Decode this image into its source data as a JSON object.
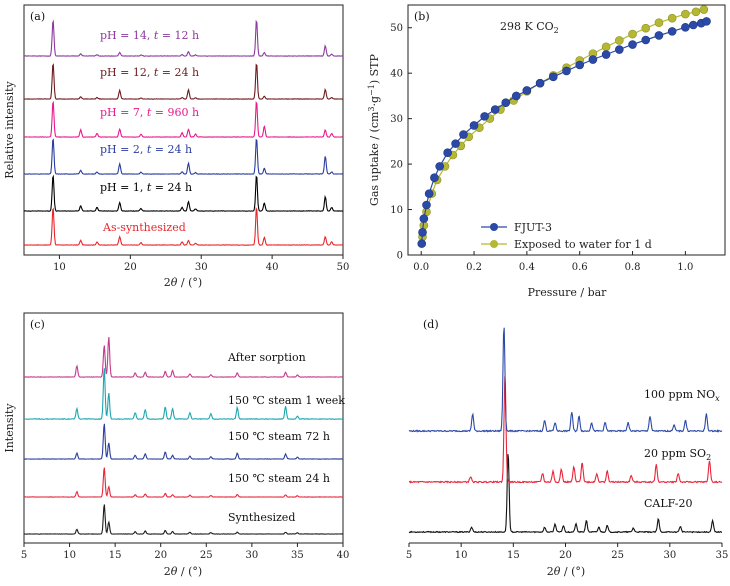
{
  "chart_data": [
    {
      "panel": "(a)",
      "type": "line",
      "xlabel": "2θ / (°)",
      "ylabel": "Relative intensity",
      "xlim": [
        5,
        50
      ],
      "xticks": [
        10,
        20,
        30,
        40,
        50
      ],
      "series": [
        {
          "name": "As-synthesized",
          "color": "#e8262a",
          "peaks": [
            [
              9.1,
              1.0
            ],
            [
              13.0,
              0.12
            ],
            [
              15.3,
              0.08
            ],
            [
              18.5,
              0.22
            ],
            [
              21.5,
              0.06
            ],
            [
              27.3,
              0.08
            ],
            [
              28.2,
              0.12
            ],
            [
              29.2,
              0.05
            ],
            [
              37.8,
              1.0
            ],
            [
              38.9,
              0.2
            ],
            [
              47.5,
              0.22
            ],
            [
              48.4,
              0.08
            ]
          ]
        },
        {
          "name": "pH = 1, t = 24 h",
          "color": "#000000",
          "peaks": [
            [
              9.1,
              1.0
            ],
            [
              13.0,
              0.14
            ],
            [
              15.3,
              0.1
            ],
            [
              18.5,
              0.24
            ],
            [
              21.5,
              0.07
            ],
            [
              27.3,
              0.1
            ],
            [
              28.2,
              0.26
            ],
            [
              29.2,
              0.06
            ],
            [
              37.8,
              1.0
            ],
            [
              38.9,
              0.22
            ],
            [
              47.5,
              0.4
            ],
            [
              48.4,
              0.1
            ]
          ]
        },
        {
          "name": "pH = 2, t = 24 h",
          "color": "#2b3d9e",
          "peaks": [
            [
              9.1,
              1.0
            ],
            [
              13.0,
              0.1
            ],
            [
              15.3,
              0.06
            ],
            [
              18.5,
              0.28
            ],
            [
              21.5,
              0.05
            ],
            [
              27.3,
              0.06
            ],
            [
              28.2,
              0.3
            ],
            [
              29.2,
              0.04
            ],
            [
              37.8,
              1.0
            ],
            [
              38.9,
              0.16
            ],
            [
              47.5,
              0.5
            ],
            [
              48.4,
              0.06
            ]
          ]
        },
        {
          "name": "pH = 7, t = 960 h",
          "color": "#e8198c",
          "peaks": [
            [
              9.1,
              1.0
            ],
            [
              13.0,
              0.2
            ],
            [
              15.3,
              0.1
            ],
            [
              18.5,
              0.22
            ],
            [
              21.5,
              0.08
            ],
            [
              27.3,
              0.12
            ],
            [
              28.2,
              0.22
            ],
            [
              29.2,
              0.08
            ],
            [
              37.8,
              1.0
            ],
            [
              38.9,
              0.3
            ],
            [
              47.5,
              0.2
            ],
            [
              48.4,
              0.1
            ]
          ]
        },
        {
          "name": "pH = 12, t = 24 h",
          "color": "#6e1a1f",
          "peaks": [
            [
              9.1,
              1.0
            ],
            [
              13.0,
              0.06
            ],
            [
              15.3,
              0.04
            ],
            [
              18.5,
              0.24
            ],
            [
              21.5,
              0.03
            ],
            [
              27.3,
              0.04
            ],
            [
              28.2,
              0.26
            ],
            [
              29.2,
              0.03
            ],
            [
              37.8,
              1.0
            ],
            [
              38.9,
              0.08
            ],
            [
              47.5,
              0.26
            ],
            [
              48.4,
              0.04
            ]
          ]
        },
        {
          "name": "pH = 14, t = 12 h",
          "color": "#8b3a9e",
          "peaks": [
            [
              9.1,
              1.0
            ],
            [
              13.0,
              0.06
            ],
            [
              15.3,
              0.04
            ],
            [
              18.5,
              0.1
            ],
            [
              21.5,
              0.03
            ],
            [
              27.3,
              0.04
            ],
            [
              28.2,
              0.12
            ],
            [
              29.2,
              0.03
            ],
            [
              37.8,
              1.0
            ],
            [
              38.9,
              0.1
            ],
            [
              47.5,
              0.28
            ],
            [
              48.4,
              0.05
            ]
          ]
        }
      ]
    },
    {
      "panel": "(b)",
      "type": "scatter",
      "title": "298 K CO2",
      "xlabel": "Pressure / bar",
      "ylabel": "Gas uptake / (cm3·g−1) STP",
      "xlim": [
        -0.05,
        1.15
      ],
      "ylim": [
        0,
        55
      ],
      "xticks": [
        0.0,
        0.2,
        0.4,
        0.6,
        0.8,
        1.0
      ],
      "yticks": [
        0,
        10,
        20,
        30,
        40,
        50
      ],
      "legend": "bottom-right",
      "series": [
        {
          "name": "FJUT-3",
          "color": "#2b4aa8",
          "x": [
            0.002,
            0.005,
            0.01,
            0.02,
            0.03,
            0.05,
            0.07,
            0.1,
            0.13,
            0.16,
            0.2,
            0.24,
            0.28,
            0.32,
            0.36,
            0.4,
            0.45,
            0.5,
            0.55,
            0.6,
            0.65,
            0.7,
            0.75,
            0.8,
            0.85,
            0.9,
            0.95,
            1.0,
            1.03,
            1.06,
            1.08
          ],
          "y": [
            2.5,
            5,
            8,
            11,
            13.5,
            17,
            19.5,
            22.5,
            24.5,
            26.5,
            28.5,
            30.5,
            32,
            33.5,
            35,
            36.2,
            37.8,
            39.2,
            40.5,
            41.8,
            43,
            44.1,
            45.2,
            46.3,
            47.3,
            48.3,
            49.2,
            50.1,
            50.6,
            51,
            51.4
          ]
        },
        {
          "name": "Exposed to water for 1 d",
          "color": "#b5b832",
          "x": [
            0.005,
            0.01,
            0.02,
            0.04,
            0.06,
            0.09,
            0.12,
            0.15,
            0.18,
            0.22,
            0.26,
            0.3,
            0.35,
            0.4,
            0.45,
            0.5,
            0.55,
            0.6,
            0.65,
            0.7,
            0.75,
            0.8,
            0.85,
            0.9,
            0.95,
            1.0,
            1.04,
            1.07
          ],
          "y": [
            4,
            6.5,
            9.5,
            13.5,
            16.5,
            19.5,
            22,
            24,
            26,
            28,
            30,
            32,
            34,
            36,
            37.8,
            39.5,
            41.2,
            42.8,
            44.3,
            45.8,
            47.2,
            48.6,
            49.9,
            51.1,
            52.1,
            53,
            53.5,
            54
          ]
        }
      ]
    },
    {
      "panel": "(c)",
      "type": "line",
      "xlabel": "2θ / (°)",
      "ylabel": "Intensity",
      "xlim": [
        5,
        40
      ],
      "xticks": [
        5,
        10,
        15,
        20,
        25,
        30,
        35,
        40
      ],
      "series": [
        {
          "name": "Synthesized",
          "color": "#1c1c1c",
          "peaks": [
            [
              10.8,
              0.15
            ],
            [
              13.8,
              1.0
            ],
            [
              14.3,
              0.4
            ],
            [
              17.2,
              0.08
            ],
            [
              18.3,
              0.1
            ],
            [
              20.5,
              0.12
            ],
            [
              21.3,
              0.08
            ],
            [
              23.2,
              0.06
            ],
            [
              25.5,
              0.05
            ],
            [
              28.4,
              0.06
            ],
            [
              33.7,
              0.06
            ],
            [
              35.0,
              0.04
            ]
          ]
        },
        {
          "name": "150 ℃ steam 24 h",
          "color": "#e8263a",
          "peaks": [
            [
              10.8,
              0.18
            ],
            [
              13.8,
              1.0
            ],
            [
              14.3,
              0.35
            ],
            [
              17.2,
              0.08
            ],
            [
              18.3,
              0.1
            ],
            [
              20.5,
              0.12
            ],
            [
              21.3,
              0.08
            ],
            [
              23.2,
              0.06
            ],
            [
              25.5,
              0.05
            ],
            [
              28.4,
              0.08
            ],
            [
              33.7,
              0.07
            ],
            [
              35.0,
              0.04
            ]
          ]
        },
        {
          "name": "150 ℃ steam 72 h",
          "color": "#2b3d9e",
          "peaks": [
            [
              10.8,
              0.16
            ],
            [
              13.8,
              1.0
            ],
            [
              14.3,
              0.45
            ],
            [
              17.2,
              0.1
            ],
            [
              18.3,
              0.14
            ],
            [
              20.5,
              0.2
            ],
            [
              21.3,
              0.1
            ],
            [
              23.2,
              0.08
            ],
            [
              25.5,
              0.06
            ],
            [
              28.4,
              0.16
            ],
            [
              33.7,
              0.14
            ],
            [
              35.0,
              0.05
            ]
          ]
        },
        {
          "name": "150 ℃ steam 1 week",
          "color": "#1ea6b0",
          "peaks": [
            [
              10.8,
              0.2
            ],
            [
              13.8,
              1.0
            ],
            [
              14.3,
              0.5
            ],
            [
              17.2,
              0.12
            ],
            [
              18.3,
              0.18
            ],
            [
              20.5,
              0.24
            ],
            [
              21.3,
              0.2
            ],
            [
              23.2,
              0.12
            ],
            [
              25.5,
              0.1
            ],
            [
              28.4,
              0.22
            ],
            [
              33.7,
              0.24
            ],
            [
              35.0,
              0.06
            ]
          ]
        },
        {
          "name": "After sorption",
          "color": "#c43a8c",
          "peaks": [
            [
              10.8,
              0.28
            ],
            [
              13.8,
              0.8
            ],
            [
              14.3,
              1.0
            ],
            [
              17.2,
              0.1
            ],
            [
              18.3,
              0.12
            ],
            [
              20.5,
              0.14
            ],
            [
              21.3,
              0.16
            ],
            [
              23.2,
              0.08
            ],
            [
              25.5,
              0.06
            ],
            [
              28.4,
              0.1
            ],
            [
              33.7,
              0.12
            ],
            [
              35.0,
              0.05
            ]
          ]
        }
      ]
    },
    {
      "panel": "(d)",
      "type": "line",
      "xlabel": "2θ / (°)",
      "xlim": [
        5,
        35
      ],
      "xticks": [
        5,
        10,
        15,
        20,
        25,
        30,
        35
      ],
      "series": [
        {
          "name": "CALF-20",
          "color": "#111111",
          "peaks": [
            [
              11.0,
              0.06
            ],
            [
              14.5,
              1.0
            ],
            [
              18.0,
              0.06
            ],
            [
              19.0,
              0.1
            ],
            [
              19.8,
              0.08
            ],
            [
              21.0,
              0.1
            ],
            [
              22.0,
              0.14
            ],
            [
              23.2,
              0.06
            ],
            [
              24.0,
              0.08
            ],
            [
              26.5,
              0.05
            ],
            [
              28.9,
              0.16
            ],
            [
              31.0,
              0.07
            ],
            [
              34.1,
              0.14
            ]
          ]
        },
        {
          "name": "20 ppm SO2",
          "color": "#e8263a",
          "peaks": [
            [
              10.9,
              0.05
            ],
            [
              14.2,
              1.0
            ],
            [
              17.8,
              0.08
            ],
            [
              18.8,
              0.1
            ],
            [
              19.6,
              0.12
            ],
            [
              20.8,
              0.14
            ],
            [
              21.6,
              0.18
            ],
            [
              23.0,
              0.08
            ],
            [
              24.0,
              0.1
            ],
            [
              26.3,
              0.06
            ],
            [
              28.7,
              0.16
            ],
            [
              30.8,
              0.08
            ],
            [
              33.8,
              0.2
            ]
          ]
        },
        {
          "name": "100 ppm NOx",
          "color": "#2b4aa8",
          "peaks": [
            [
              11.1,
              0.16
            ],
            [
              14.1,
              1.0
            ],
            [
              18.0,
              0.1
            ],
            [
              19.0,
              0.08
            ],
            [
              20.6,
              0.18
            ],
            [
              21.3,
              0.14
            ],
            [
              22.5,
              0.08
            ],
            [
              23.8,
              0.08
            ],
            [
              26.0,
              0.08
            ],
            [
              28.1,
              0.14
            ],
            [
              30.4,
              0.06
            ],
            [
              31.5,
              0.1
            ],
            [
              33.5,
              0.16
            ]
          ]
        }
      ]
    }
  ],
  "text": {
    "a_panel": "(a)",
    "a_xlabel_prefix": "2",
    "a_xlabel_theta": "θ",
    "a_xlabel_suffix": " / (°)",
    "a_ylabel": "Relative intensity",
    "a_labels": [
      {
        "main": "As-synthesized",
        "color": "#e8262a"
      },
      {
        "pre": "pH = 1, ",
        "t": "t",
        "post": " = 24 h",
        "color": "#000000"
      },
      {
        "pre": "pH = 2, ",
        "t": "t",
        "post": " = 24 h",
        "color": "#2b3d9e"
      },
      {
        "pre": "pH = 7, ",
        "t": "t",
        "post": " = 960 h",
        "color": "#e8198c"
      },
      {
        "pre": "pH = 12, ",
        "t": "t",
        "post": " = 24 h",
        "color": "#6e1a1f"
      },
      {
        "pre": "pH = 14, ",
        "t": "t",
        "post": " = 12 h",
        "color": "#8b3a9e"
      }
    ],
    "b_panel": "(b)",
    "b_title_main": "298 K CO",
    "b_title_sub": "2",
    "b_xlabel": "Pressure / bar",
    "b_ylabel_pre": "Gas uptake / (cm",
    "b_ylabel_sup1": "3",
    "b_ylabel_mid": "·g",
    "b_ylabel_sup2": "−1",
    "b_ylabel_post": ") STP",
    "c_panel": "(c)",
    "c_ylabel": "Intensity",
    "c_labels": [
      "Synthesized",
      "150 ℃ steam 24 h",
      "150 ℃ steam 72 h",
      "150 ℃ steam 1 week",
      "After sorption"
    ],
    "d_panel": "(d)",
    "d_labels": [
      {
        "main": "CALF-20",
        "sub": ""
      },
      {
        "main": "20 ppm SO",
        "sub": "2"
      },
      {
        "main": "100 ppm NO",
        "sub": "x"
      }
    ]
  }
}
